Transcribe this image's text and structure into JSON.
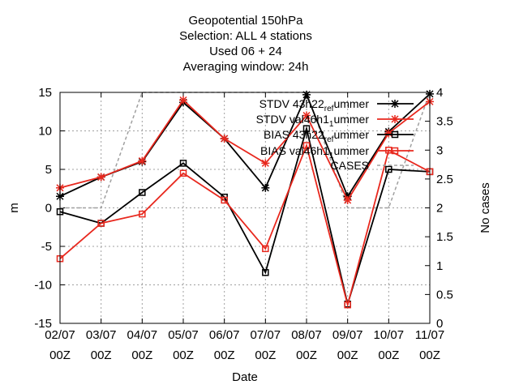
{
  "chart_data": {
    "type": "line",
    "title_lines": [
      "Geopotential 150hPa",
      "Selection: ALL       4 stations",
      "Used  06  + 24",
      "Averaging window: 24h"
    ],
    "xlabel": "Date",
    "ylabel": "m",
    "y2label": "No cases",
    "x": [
      "02/07",
      "03/07",
      "04/07",
      "05/07",
      "06/07",
      "07/07",
      "08/07",
      "09/07",
      "10/07",
      "11/07"
    ],
    "x_sub": "00Z",
    "ylim": [
      -15,
      15
    ],
    "yticks": [
      -15,
      -10,
      -5,
      0,
      5,
      10,
      15
    ],
    "y2lim": [
      0,
      4
    ],
    "y2ticks": [
      "0",
      "0.5",
      "1",
      "1.5",
      "2",
      "2.5",
      "3",
      "3.5",
      "4"
    ],
    "grid": true,
    "legend_position": "top-right",
    "series": [
      {
        "name": "STDV 43h22_ref_summer",
        "label_main": "STDV 43h22",
        "label_sub": "ref",
        "label_tail": "ummer",
        "color": "#000000",
        "marker": "star",
        "values": [
          1.5,
          4.0,
          6.0,
          13.7,
          9.0,
          2.6,
          14.7,
          1.5,
          9.9,
          14.8
        ]
      },
      {
        "name": "STDV val46h1_1_summer",
        "label_main": "STDV val46h1",
        "label_sub": "1",
        "label_tail": "ummer",
        "color": "#e8281e",
        "marker": "star",
        "values": [
          2.6,
          4.0,
          6.1,
          14.0,
          9.0,
          5.8,
          12.0,
          1.0,
          9.7,
          13.8
        ]
      },
      {
        "name": "BIAS 43h22_ref_summer",
        "label_main": "BIAS 43h22",
        "label_sub": "ref",
        "label_tail": "ummer",
        "color": "#000000",
        "marker": "square",
        "values": [
          -0.5,
          -2.0,
          2.0,
          5.8,
          1.4,
          -8.4,
          10.3,
          -12.5,
          5.0,
          4.7
        ]
      },
      {
        "name": "BIAS val46h1_1_summer",
        "label_main": "BIAS val46h1",
        "label_sub": "1",
        "label_tail": "ummer",
        "color": "#e8281e",
        "marker": "square",
        "values": [
          -6.6,
          -2.0,
          -0.8,
          4.5,
          1.0,
          -5.3,
          8.1,
          -12.6,
          7.5,
          4.7
        ]
      },
      {
        "name": "CASES",
        "color": "#a0a0a0",
        "marker": "none",
        "dashed": true,
        "axis": "y2",
        "values": [
          2,
          2,
          4,
          4,
          4,
          4,
          4,
          2,
          2,
          4
        ]
      }
    ]
  }
}
